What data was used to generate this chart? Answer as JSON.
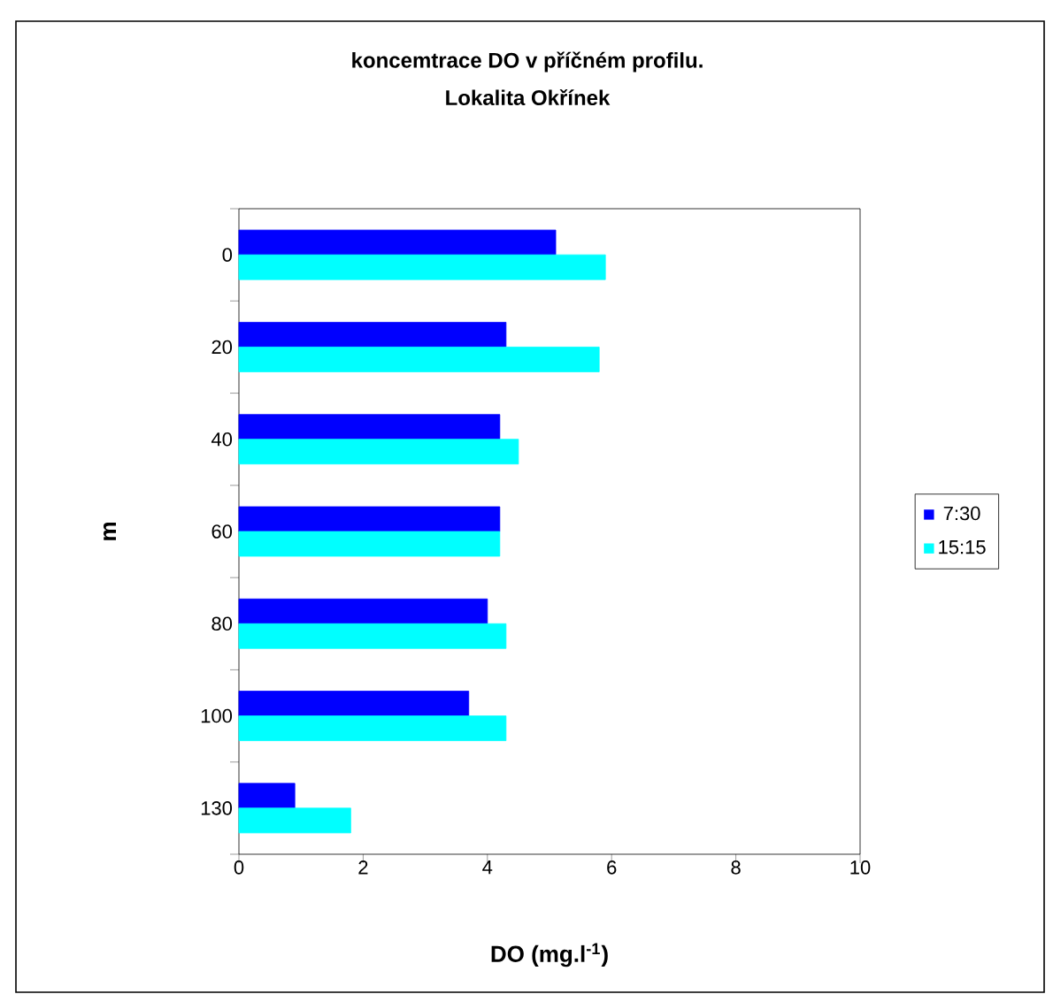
{
  "chart_data": {
    "type": "bar",
    "orientation": "horizontal",
    "title": "koncemtrace DO v příčném profilu.",
    "subtitle": "Lokalita Okřínek",
    "xlabel": "DO (mg.l$^{-1}$)",
    "ylabel": "m",
    "categories": [
      "0",
      "20",
      "40",
      "60",
      "80",
      "100",
      "130"
    ],
    "series": [
      {
        "name": "7:30",
        "color": "#0000ff",
        "values": [
          5.1,
          4.3,
          4.2,
          4.2,
          4.0,
          3.7,
          0.9
        ]
      },
      {
        "name": "15:15",
        "color": "#00ffff",
        "values": [
          5.9,
          5.8,
          4.5,
          4.2,
          4.3,
          4.3,
          1.8
        ]
      }
    ],
    "xlim": [
      0,
      10
    ],
    "xticks": [
      0,
      2,
      4,
      6,
      8,
      10
    ],
    "grid": false,
    "legend": "right"
  }
}
